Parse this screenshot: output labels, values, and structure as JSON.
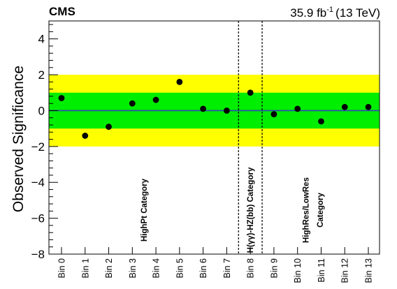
{
  "chart_data": {
    "type": "scatter",
    "experiment": "CMS",
    "luminosity_label": "35.9 fb",
    "luminosity_exponent": "-1",
    "energy_label": "(13 TeV)",
    "ylabel": "Observed Significance",
    "xlabel": "",
    "ylim": [
      -8,
      5
    ],
    "y_ticks": [
      -8,
      -6,
      -4,
      -2,
      0,
      2,
      4
    ],
    "grid": false,
    "categories": [
      "Bin 0",
      "Bin 1",
      "Bin 2",
      "Bin 3",
      "Bin 4",
      "Bin 5",
      "Bin 6",
      "Bin 7",
      "Bin 8",
      "Bin 9",
      "Bin 10",
      "Bin 11",
      "Bin 12",
      "Bin 13"
    ],
    "values": [
      0.7,
      -1.4,
      -0.9,
      0.4,
      0.6,
      1.6,
      0.1,
      0.0,
      1.0,
      -0.2,
      0.1,
      -0.6,
      0.2,
      0.2
    ],
    "bands": [
      {
        "name": "2 sigma",
        "low": -2,
        "high": 2,
        "color": "#ffff00"
      },
      {
        "name": "1 sigma",
        "low": -1,
        "high": 1,
        "color": "#00ee00"
      }
    ],
    "reference_line": {
      "y": 0,
      "color": "#3344bb"
    },
    "dividers": [
      7.5,
      8.5
    ],
    "category_labels": [
      {
        "text": "HighPt Category",
        "x": 3.5
      },
      {
        "text": "H(γγ)-HZ(bb) Category",
        "x": 8.0
      },
      {
        "text": "HighRes/LowRes",
        "x": 10.35
      },
      {
        "text": "Category",
        "x": 10.95
      }
    ],
    "marker_color": "#000000"
  }
}
